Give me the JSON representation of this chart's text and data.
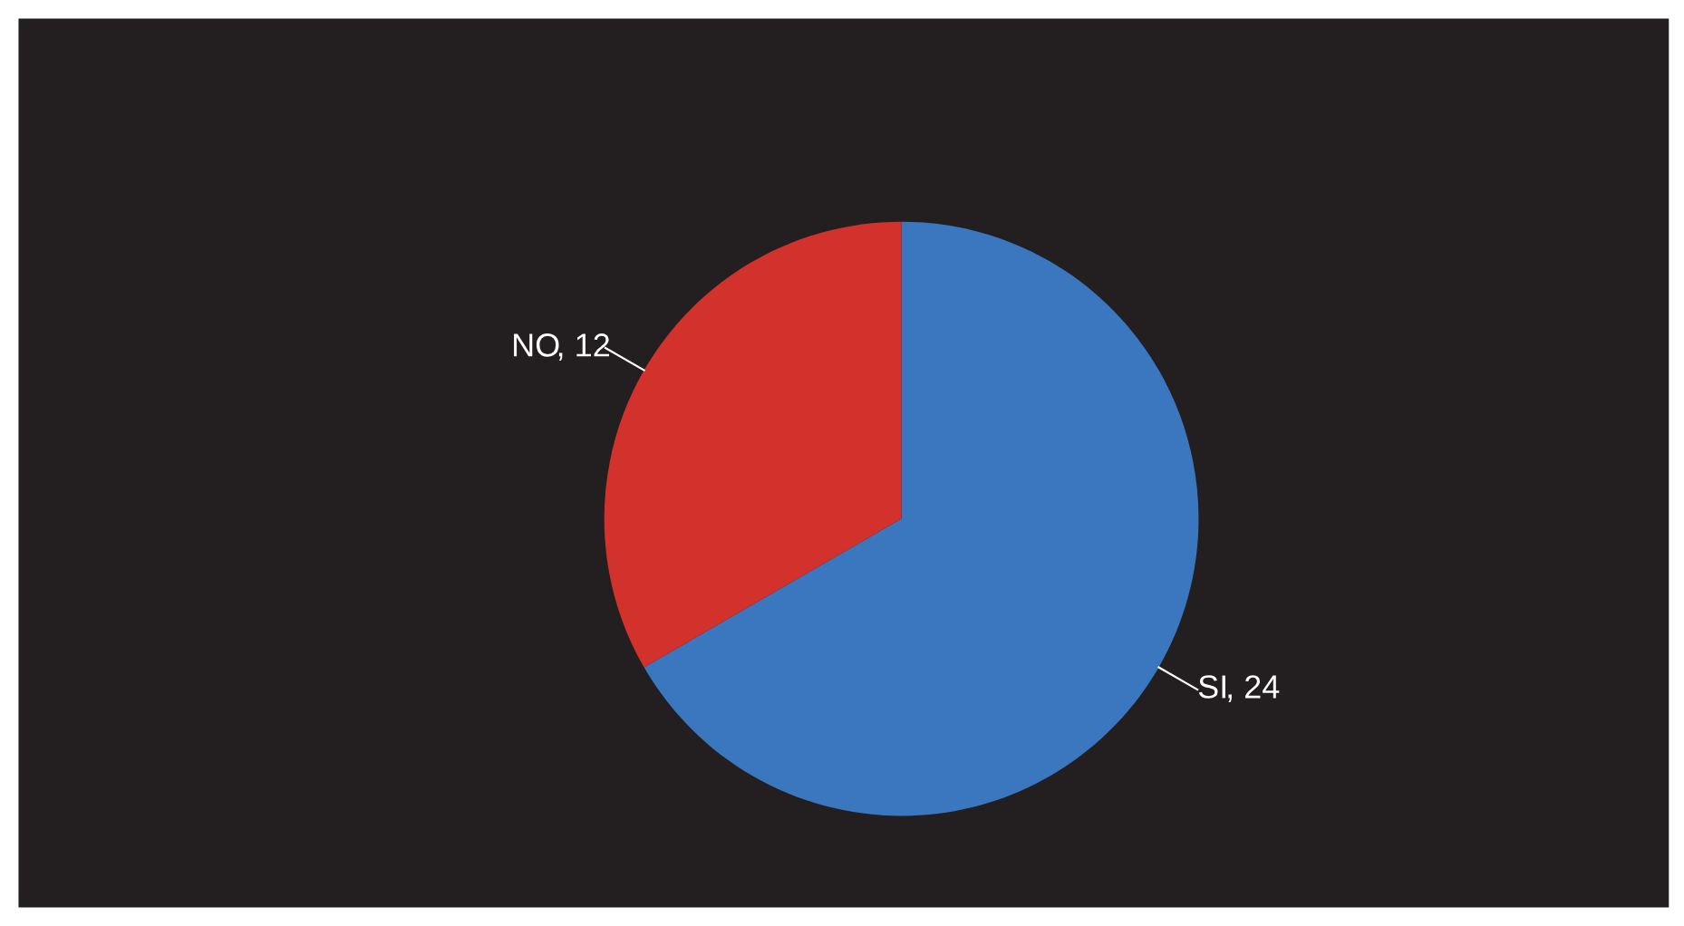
{
  "chart_data": {
    "type": "pie",
    "categories": [
      "SI",
      "NO"
    ],
    "values": [
      24,
      12
    ],
    "value_labels": [
      ", 24",
      ", 12"
    ],
    "colors": [
      "#3a77bf",
      "#d2322b"
    ],
    "legend": false
  }
}
